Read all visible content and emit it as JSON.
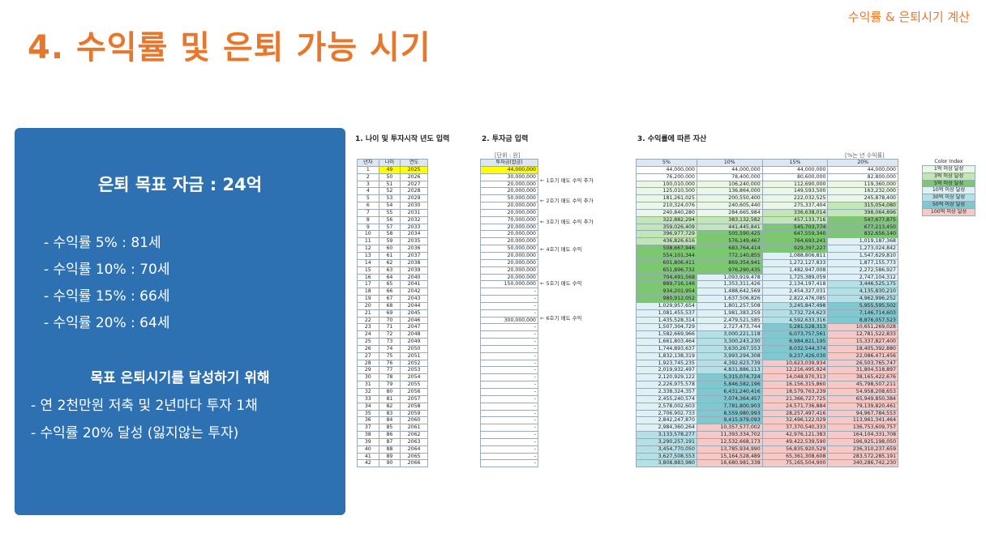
{
  "header": {
    "top_right": "수익률 & 은퇴시기 계산",
    "title": "4. 수익률 및 은퇴 가능 시기"
  },
  "panel": {
    "goal": "은퇴 목표 자금 : 24억",
    "rates": [
      "- 수익률   5% : 81세",
      "- 수익률 10% : 70세",
      "- 수익률 15% : 66세",
      "- 수익률 20% : 64세"
    ],
    "sub_title": "목표 은퇴시기를 달성하기 위해",
    "steps": [
      "- 연 2천만원 저축 및 2년마다 투자 1채",
      "- 수익률 20% 달성 (잃지않는 투자)"
    ]
  },
  "sections": {
    "s1": "1. 나이 및 투자시작 년도 입력",
    "s2": "2. 투자금 입력",
    "s3": "3. 수익률에 따른 자산"
  },
  "notes": {
    "unit": "[단위 : 원]",
    "rate_note": "[%는 년 수익률]"
  },
  "table1": {
    "headers": [
      "년차",
      "나이",
      "연도"
    ],
    "rows": [
      [
        "1",
        "49",
        "2025"
      ],
      [
        "2",
        "50",
        "2026"
      ],
      [
        "3",
        "51",
        "2027"
      ],
      [
        "4",
        "52",
        "2028"
      ],
      [
        "5",
        "53",
        "2029"
      ],
      [
        "6",
        "54",
        "2030"
      ],
      [
        "7",
        "55",
        "2031"
      ],
      [
        "8",
        "56",
        "2032"
      ],
      [
        "9",
        "57",
        "2033"
      ],
      [
        "10",
        "58",
        "2034"
      ],
      [
        "11",
        "59",
        "2035"
      ],
      [
        "12",
        "60",
        "2036"
      ],
      [
        "13",
        "61",
        "2037"
      ],
      [
        "14",
        "62",
        "2038"
      ],
      [
        "15",
        "63",
        "2039"
      ],
      [
        "16",
        "64",
        "2040"
      ],
      [
        "17",
        "65",
        "2041"
      ],
      [
        "18",
        "66",
        "2042"
      ],
      [
        "19",
        "67",
        "2043"
      ],
      [
        "20",
        "68",
        "2044"
      ],
      [
        "21",
        "69",
        "2045"
      ],
      [
        "22",
        "70",
        "2046"
      ],
      [
        "23",
        "71",
        "2047"
      ],
      [
        "24",
        "72",
        "2048"
      ],
      [
        "25",
        "73",
        "2049"
      ],
      [
        "26",
        "74",
        "2050"
      ],
      [
        "27",
        "75",
        "2051"
      ],
      [
        "28",
        "76",
        "2052"
      ],
      [
        "29",
        "77",
        "2053"
      ],
      [
        "30",
        "78",
        "2054"
      ],
      [
        "31",
        "79",
        "2055"
      ],
      [
        "32",
        "80",
        "2056"
      ],
      [
        "33",
        "81",
        "2057"
      ],
      [
        "34",
        "82",
        "2058"
      ],
      [
        "35",
        "83",
        "2059"
      ],
      [
        "36",
        "84",
        "2060"
      ],
      [
        "37",
        "85",
        "2061"
      ],
      [
        "38",
        "86",
        "2062"
      ],
      [
        "39",
        "87",
        "2063"
      ],
      [
        "40",
        "88",
        "2064"
      ],
      [
        "41",
        "89",
        "2065"
      ],
      [
        "42",
        "90",
        "2066"
      ]
    ]
  },
  "table2": {
    "header": "투자금(합금)",
    "values": [
      "44,000,000",
      "30,000,000",
      "20,000,000",
      "20,000,000",
      "50,000,000",
      "20,000,000",
      "20,000,000",
      "70,000,000",
      "20,000,000",
      "20,000,000",
      "20,000,000",
      "50,000,000",
      "20,000,000",
      "20,000,000",
      "20,000,000",
      "20,000,000",
      "150,000,000",
      "-",
      "-",
      "-",
      "-",
      "300,000,000",
      "-",
      "-",
      "-",
      "-",
      "-",
      "-",
      "-",
      "-",
      "-",
      "-",
      "-",
      "-",
      "-",
      "-",
      "-",
      "-",
      "-",
      "-",
      "-",
      "-"
    ]
  },
  "arrows": [
    {
      "row": 1,
      "text": "← 1호기 매도 수익 추가"
    },
    {
      "row": 4,
      "text": "← 2호기 매도 수익 추가"
    },
    {
      "row": 7,
      "text": "← 3호기 매도 수익 추가"
    },
    {
      "row": 11,
      "text": "← 4호기 매도 수익"
    },
    {
      "row": 16,
      "text": "← 5호기 매도 수익"
    },
    {
      "row": 21,
      "text": "← 6호기 매도 수익"
    }
  ],
  "table3": {
    "headers": [
      "5%",
      "10%",
      "15%",
      "20%"
    ],
    "rows": [
      [
        "44,000,000",
        "44,000,000",
        "44,000,000",
        "44,000,000"
      ],
      [
        "76,200,000",
        "78,400,000",
        "80,600,000",
        "82,800,000"
      ],
      [
        "100,010,000",
        "106,240,000",
        "112,690,000",
        "119,360,000"
      ],
      [
        "125,010,500",
        "136,864,000",
        "149,593,500",
        "163,232,000"
      ],
      [
        "181,261,025",
        "200,550,400",
        "222,032,525",
        "245,878,400"
      ],
      [
        "210,324,076",
        "240,605,440",
        "275,337,404",
        "315,054,080"
      ],
      [
        "240,840,280",
        "284,665,984",
        "336,638,014",
        "398,064,896"
      ],
      [
        "322,882,294",
        "383,132,582",
        "457,133,716",
        "547,677,875"
      ],
      [
        "359,026,409",
        "441,445,841",
        "545,703,774",
        "677,213,450"
      ],
      [
        "396,977,729",
        "505,590,425",
        "647,559,340",
        "832,656,140"
      ],
      [
        "436,826,616",
        "576,149,467",
        "764,693,241",
        "1,019,187,368"
      ],
      [
        "508,667,946",
        "683,764,414",
        "929,397,227",
        "1,273,024,842"
      ],
      [
        "554,101,344",
        "772,140,855",
        "1,088,806,811",
        "1,547,629,810"
      ],
      [
        "601,806,411",
        "869,354,941",
        "1,272,127,833",
        "1,877,155,773"
      ],
      [
        "651,896,732",
        "976,290,435",
        "1,482,947,008",
        "2,272,586,927"
      ],
      [
        "704,491,568",
        "1,093,919,478",
        "1,725,389,059",
        "2,747,104,312"
      ],
      [
        "889,716,146",
        "1,353,311,426",
        "2,134,197,418",
        "3,446,525,175"
      ],
      [
        "934,201,954",
        "1,488,642,569",
        "2,454,327,031",
        "4,135,830,210"
      ],
      [
        "980,912,052",
        "1,637,506,826",
        "2,822,476,085",
        "4,962,996,252"
      ],
      [
        "1,029,957,654",
        "1,801,257,508",
        "3,245,847,498",
        "5,955,595,502"
      ],
      [
        "1,081,455,537",
        "1,981,383,259",
        "3,732,724,623",
        "7,146,714,603"
      ],
      [
        "1,435,528,314",
        "2,479,521,585",
        "4,592,633,316",
        "8,876,057,523"
      ],
      [
        "1,507,304,729",
        "2,727,473,744",
        "5,281,528,313",
        "10,651,269,028"
      ],
      [
        "1,582,669,966",
        "3,000,221,118",
        "6,073,757,561",
        "12,781,522,833"
      ],
      [
        "1,661,803,464",
        "3,300,243,230",
        "6,984,821,195",
        "15,337,827,400"
      ],
      [
        "1,744,893,637",
        "3,630,267,553",
        "8,032,544,374",
        "18,405,392,880"
      ],
      [
        "1,832,138,319",
        "3,993,294,308",
        "9,237,426,030",
        "22,086,471,456"
      ],
      [
        "1,923,745,235",
        "4,392,623,739",
        "10,623,039,934",
        "26,503,765,747"
      ],
      [
        "2,019,932,497",
        "4,831,886,113",
        "12,216,495,924",
        "31,804,518,897"
      ],
      [
        "2,120,929,122",
        "5,315,074,724",
        "14,048,970,313",
        "38,165,422,676"
      ],
      [
        "2,226,975,578",
        "5,846,582,196",
        "16,156,315,860",
        "45,798,507,211"
      ],
      [
        "2,338,324,357",
        "6,431,240,416",
        "18,579,763,239",
        "54,958,208,653"
      ],
      [
        "2,455,240,574",
        "7,074,364,457",
        "21,366,727,725",
        "65,949,850,384"
      ],
      [
        "2,578,002,603",
        "7,781,800,903",
        "24,571,736,884",
        "79,139,820,461"
      ],
      [
        "2,706,902,733",
        "8,559,980,993",
        "28,257,497,416",
        "94,967,784,553"
      ],
      [
        "2,842,247,870",
        "9,415,979,093",
        "32,496,122,029",
        "113,961,341,464"
      ],
      [
        "2,984,360,264",
        "10,357,577,002",
        "37,370,540,333",
        "136,753,609,757"
      ],
      [
        "3,133,578,277",
        "11,393,334,702",
        "42,976,121,383",
        "164,104,331,708"
      ],
      [
        "3,290,257,191",
        "12,532,668,173",
        "49,422,539,590",
        "196,925,198,050"
      ],
      [
        "3,454,770,050",
        "13,785,934,990",
        "56,835,920,529",
        "236,310,237,659"
      ],
      [
        "3,627,508,553",
        "15,164,528,489",
        "65,361,308,608",
        "283,572,285,191"
      ],
      [
        "3,808,883,980",
        "16,680,981,338",
        "75,165,504,900",
        "340,286,742,230"
      ]
    ]
  },
  "legend": {
    "title": "Color Index",
    "items": [
      {
        "label": "1억 이상 달성",
        "color": "#eaf6e6"
      },
      {
        "label": "3억 이상 달성",
        "color": "#c3e6b6"
      },
      {
        "label": "5억 이상 달성",
        "color": "#7cc870"
      },
      {
        "label": "10억 이상 달성",
        "color": "#dff1f4"
      },
      {
        "label": "30억 이상 달성",
        "color": "#b4e0e6"
      },
      {
        "label": "50억 이상 달성",
        "color": "#7fc8cf"
      },
      {
        "label": "100억 이상 달성",
        "color": "#f6c9c6"
      }
    ]
  }
}
